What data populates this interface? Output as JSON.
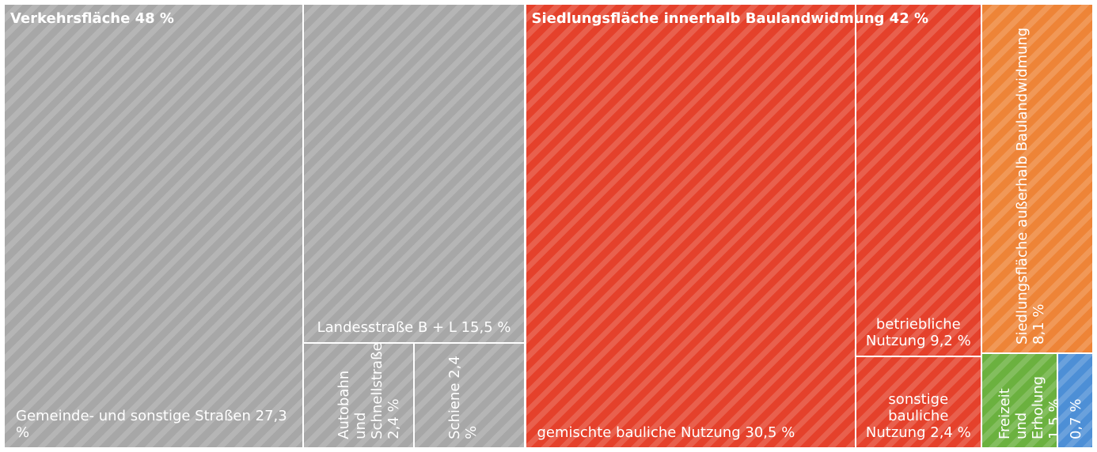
{
  "chart_data": {
    "type": "treemap",
    "groups": [
      {
        "name": "Verkehrsfläche",
        "value": 48,
        "value_label": "48 %",
        "color": "#a7a7a7",
        "children": [
          {
            "name": "Gemeinde- und sonstige Straßen",
            "value": 27.3,
            "value_label": "27,3 %"
          },
          {
            "name": "Landesstraße B + L",
            "value": 15.5,
            "value_label": "15,5 %"
          },
          {
            "name": "Autobahn und Schnellstraße",
            "value": 2.4,
            "value_label": "2,4 %"
          },
          {
            "name": "Schiene",
            "value": 2.4,
            "value_label": "2,4 %"
          }
        ]
      },
      {
        "name": "Siedlungsfläche innerhalb Baulandwidmung",
        "value": 42,
        "value_label": "42 %",
        "color": "#e5412b",
        "children": [
          {
            "name": "gemischte bauliche Nutzung",
            "value": 30.5,
            "value_label": "30,5 %"
          },
          {
            "name": "betriebliche Nutzung",
            "value": 9.2,
            "value_label": "9,2 %"
          },
          {
            "name": "sonstige bauliche Nutzung",
            "value": 2.4,
            "value_label": "2,4 %"
          }
        ]
      },
      {
        "children": [
          {
            "name": "Siedlungsfläche außerhalb Baulandwidmung",
            "value": 8.1,
            "value_label": "8,1 %",
            "color": "#ee8437"
          },
          {
            "name": "Freizeit und Erholung",
            "value": 1.5,
            "value_label": "1,5 %",
            "color": "#6bb13f"
          },
          {
            "value": 0.7,
            "value_label": "0,7 %",
            "color": "#4d8fd6"
          }
        ]
      }
    ]
  }
}
